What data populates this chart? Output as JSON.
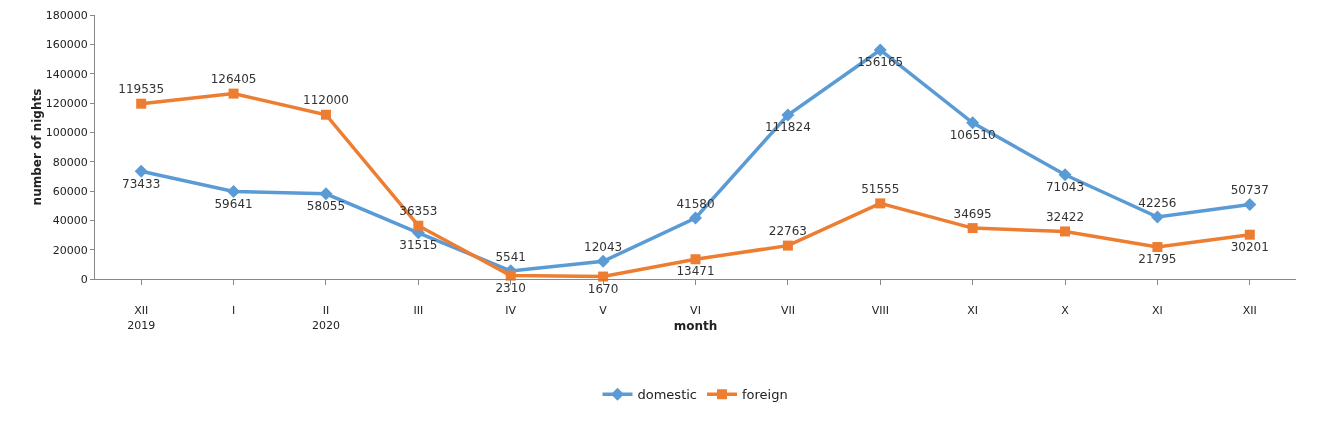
{
  "chart_data": {
    "type": "line",
    "xlabel": "month",
    "ylabel": "number of nights",
    "categories": [
      "XII\n2019",
      "I",
      "II\n2020",
      "III",
      "IV",
      "V",
      "VI",
      "VII",
      "VIII",
      "XI",
      "X",
      "XI",
      "XII"
    ],
    "series": [
      {
        "name": "domestic",
        "color": "#5b9bd5",
        "marker": "diamond",
        "values": [
          73433,
          59641,
          58055,
          31515,
          5541,
          12043,
          41580,
          111824,
          156165,
          106510,
          71043,
          42256,
          50737
        ]
      },
      {
        "name": "foreign",
        "color": "#ed7d31",
        "marker": "square",
        "values": [
          119535,
          126405,
          112000,
          36353,
          2310,
          1670,
          13471,
          22763,
          51555,
          34695,
          32422,
          21795,
          30201
        ]
      }
    ],
    "ylim": [
      0,
      180000
    ],
    "yticks": [
      0,
      20000,
      40000,
      60000,
      80000,
      100000,
      120000,
      140000,
      160000,
      180000
    ],
    "grid": false,
    "legend": "bottom",
    "data_labels": true,
    "line_style": "solid"
  }
}
